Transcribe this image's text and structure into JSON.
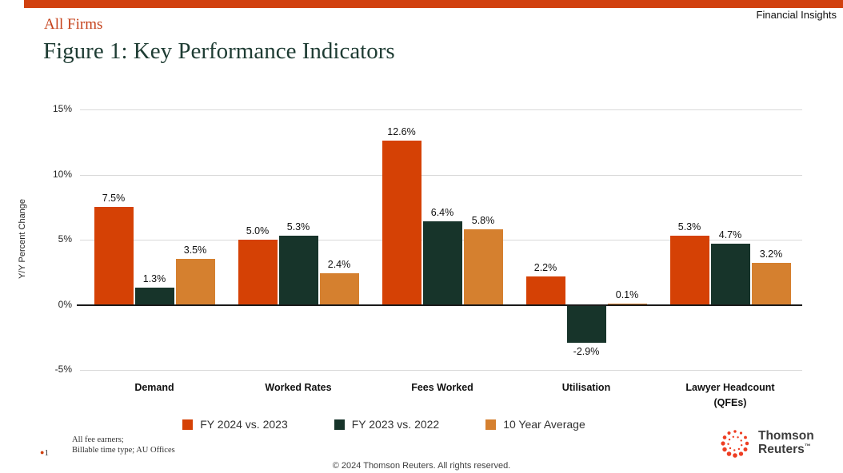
{
  "header": {
    "product_label": "Financial Insights",
    "subtitle": "All Firms",
    "title": "Figure 1: Key Performance Indicators"
  },
  "chart_data": {
    "type": "bar",
    "title": "Figure 1: Key Performance Indicators",
    "xlabel": "",
    "ylabel": "Y/Y Percent Change",
    "ylim": [
      -5,
      15
    ],
    "yticks": [
      15,
      10,
      5,
      0,
      -5
    ],
    "ytick_suffix": "%",
    "grid": true,
    "legend_position": "bottom",
    "categories": [
      "Demand",
      "Worked Rates",
      "Fees Worked",
      "Utilisation",
      "Lawyer Headcount (QFEs)"
    ],
    "series": [
      {
        "name": "FY 2024 vs. 2023",
        "color": "#d54105",
        "values": [
          7.5,
          5.0,
          12.6,
          2.2,
          5.3
        ]
      },
      {
        "name": "FY 2023 vs. 2022",
        "color": "#17342a",
        "values": [
          1.3,
          5.3,
          6.4,
          -2.9,
          4.7
        ]
      },
      {
        "name": "10 Year Average",
        "color": "#d5802f",
        "values": [
          3.5,
          2.4,
          5.8,
          0.1,
          3.2
        ]
      }
    ]
  },
  "footnote": {
    "marker": "1",
    "line1": "All fee earners;",
    "line2": "Billable time type; AU Offices"
  },
  "logo": {
    "line1": "Thomson",
    "line2": "Reuters",
    "tm": "™"
  },
  "footer": {
    "copyright": "© 2024 Thomson Reuters. All rights reserved."
  },
  "colors": {
    "accent": "#d1410f",
    "subtitle": "#c5411a",
    "title": "#1e3c33",
    "logo_dot": "#ee3e23"
  }
}
